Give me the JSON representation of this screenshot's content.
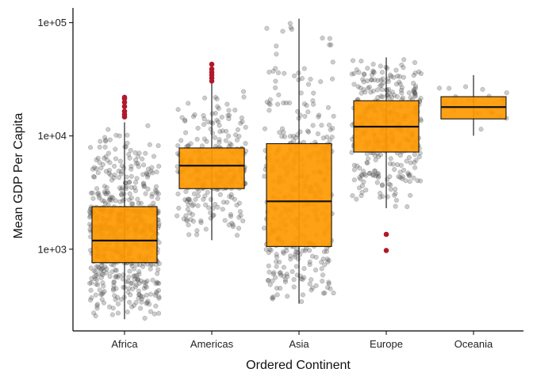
{
  "chart_data": {
    "type": "box",
    "xlabel": "Ordered Continent",
    "ylabel": "Mean GDP Per Capita",
    "yscale": "log10",
    "ylim": [
      190,
      135000
    ],
    "yticks": [
      {
        "value": 1000,
        "label": "1e+03"
      },
      {
        "value": 10000,
        "label": "1e+04"
      },
      {
        "value": 100000,
        "label": "1e+05"
      }
    ],
    "grid": false,
    "legend": "none",
    "box_fill": "#FF9900",
    "outlier_color": "#B2182B",
    "jitter_color": "#555555",
    "categories": [
      "Africa",
      "Americas",
      "Asia",
      "Europe",
      "Oceania"
    ],
    "boxes": [
      {
        "category": "Africa",
        "whisker_low": 241,
        "q1": 761,
        "median": 1192,
        "q3": 2377,
        "whisker_high": 13206,
        "outliers": [
          14723,
          15500,
          16500,
          18200,
          19800,
          21400,
          21951
        ],
        "n_points": 624
      },
      {
        "category": "Americas",
        "whisker_low": 1202,
        "q1": 3428,
        "median": 5466,
        "q3": 7831,
        "whisker_high": 29000,
        "outliers": [
          30500,
          32500,
          34500,
          36500,
          39000,
          42952
        ],
        "n_points": 300
      },
      {
        "category": "Asia",
        "whisker_low": 331,
        "q1": 1057,
        "median": 2647,
        "q3": 8549,
        "whisker_high": 108382,
        "outliers": [],
        "n_points": 396
      },
      {
        "category": "Europe",
        "whisker_low": 2300,
        "q1": 7213,
        "median": 12082,
        "q3": 20461,
        "whisker_high": 49357,
        "outliers": [
          974,
          1353
        ],
        "n_points": 360
      },
      {
        "category": "Oceania",
        "whisker_low": 10040,
        "q1": 14142,
        "median": 17983,
        "q3": 22214,
        "whisker_high": 34435,
        "outliers": [],
        "n_points": 24
      }
    ]
  }
}
